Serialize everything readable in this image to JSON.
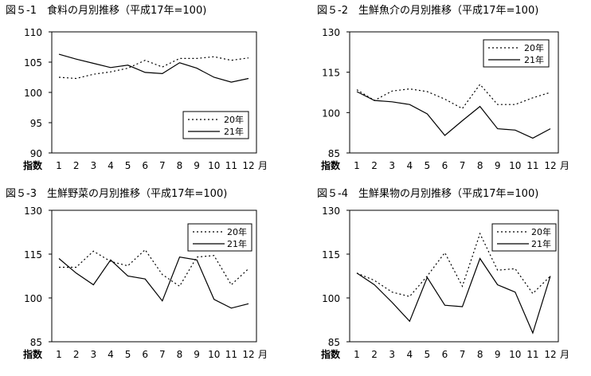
{
  "chart_data": [
    {
      "type": "line",
      "title": "図５-1　食料の月別推移（平成17年=100)",
      "categories": [
        "1",
        "2",
        "3",
        "4",
        "5",
        "6",
        "7",
        "8",
        "9",
        "10",
        "11",
        "12"
      ],
      "x_suffix": "月",
      "y_unit_label": "指数",
      "ylim": [
        90,
        110
      ],
      "y_ticks": [
        90,
        95,
        100,
        105,
        110
      ],
      "grid": false,
      "legend_position": "bottom-right",
      "series": [
        {
          "name": "20年",
          "style": "dotted",
          "values": [
            102.5,
            102.3,
            103.0,
            103.4,
            104.0,
            105.3,
            104.2,
            105.6,
            105.6,
            105.9,
            105.3,
            105.7
          ]
        },
        {
          "name": "21年",
          "style": "solid",
          "values": [
            106.3,
            105.5,
            104.8,
            104.1,
            104.5,
            103.3,
            103.1,
            104.9,
            104.0,
            102.5,
            101.7,
            102.3
          ]
        }
      ]
    },
    {
      "type": "line",
      "title": "図５-2　生鮮魚介の月別推移（平成17年=100)",
      "categories": [
        "1",
        "2",
        "3",
        "4",
        "5",
        "6",
        "7",
        "8",
        "9",
        "10",
        "11",
        "12"
      ],
      "x_suffix": "月",
      "y_unit_label": "指数",
      "ylim": [
        85,
        130
      ],
      "y_ticks": [
        85,
        100,
        115,
        130
      ],
      "grid": false,
      "legend_position": "top-right",
      "series": [
        {
          "name": "20年",
          "style": "dotted",
          "values": [
            108.5,
            104.5,
            108.0,
            108.8,
            107.8,
            105.0,
            101.5,
            110.5,
            103.0,
            103.0,
            105.5,
            107.5
          ]
        },
        {
          "name": "21年",
          "style": "solid",
          "values": [
            107.8,
            104.5,
            104.0,
            103.0,
            99.5,
            91.5,
            97.0,
            102.3,
            94.0,
            93.5,
            90.5,
            94.0
          ]
        }
      ]
    },
    {
      "type": "line",
      "title": "図５-3　生鮮野菜の月別推移（平成17年=100)",
      "categories": [
        "1",
        "2",
        "3",
        "4",
        "5",
        "6",
        "7",
        "8",
        "9",
        "10",
        "11",
        "12"
      ],
      "x_suffix": "月",
      "y_unit_label": "指数",
      "ylim": [
        85,
        130
      ],
      "y_ticks": [
        85,
        100,
        115,
        130
      ],
      "grid": false,
      "legend_position": "top-right",
      "series": [
        {
          "name": "20年",
          "style": "dotted",
          "values": [
            110.5,
            110.5,
            116.0,
            112.5,
            111.0,
            116.5,
            108.0,
            104.0,
            114.0,
            114.5,
            104.5,
            110.0
          ]
        },
        {
          "name": "21年",
          "style": "solid",
          "values": [
            113.5,
            108.5,
            104.5,
            113.0,
            107.5,
            106.5,
            99.0,
            114.0,
            113.0,
            99.5,
            96.5,
            98.0
          ]
        }
      ]
    },
    {
      "type": "line",
      "title": "図５-4　生鮮果物の月別推移（平成17年=100)",
      "categories": [
        "1",
        "2",
        "3",
        "4",
        "5",
        "6",
        "7",
        "8",
        "9",
        "10",
        "11",
        "12"
      ],
      "x_suffix": "月",
      "y_unit_label": "指数",
      "ylim": [
        85,
        130
      ],
      "y_ticks": [
        85,
        100,
        115,
        130
      ],
      "grid": false,
      "legend_position": "top-right",
      "series": [
        {
          "name": "20年",
          "style": "dotted",
          "values": [
            108.5,
            106.0,
            102.0,
            100.5,
            107.5,
            115.5,
            104.0,
            122.0,
            109.5,
            110.0,
            101.5,
            107.5
          ]
        },
        {
          "name": "21年",
          "style": "solid",
          "values": [
            108.5,
            104.5,
            98.5,
            92.0,
            107.0,
            97.5,
            97.0,
            113.5,
            104.5,
            102.0,
            88.0,
            107.5
          ]
        }
      ]
    }
  ]
}
